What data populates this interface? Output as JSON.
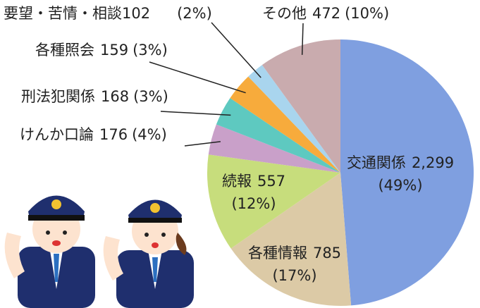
{
  "chart_data": {
    "type": "pie",
    "categories": [
      "交通関係",
      "各種情報",
      "続報",
      "けんか口論",
      "刑法犯関係",
      "各種照会",
      "要望・苦情・相談",
      "その他"
    ],
    "values": [
      2299,
      785,
      557,
      176,
      168,
      159,
      102,
      472
    ],
    "value_labels": [
      "2,299",
      "785",
      "557",
      "176",
      "168",
      "159",
      "102",
      "472"
    ],
    "percent_labels": [
      "(49%)",
      "(17%)",
      "(12%)",
      "(4%)",
      "(3%)",
      "(3%)",
      "(2%)",
      "(10%)"
    ],
    "colors": [
      "#7f9fe0",
      "#dccaa6",
      "#c7dd7c",
      "#c9a0c9",
      "#5ec9c0",
      "#f7ab3c",
      "#a9d5ee",
      "#c9abae"
    ]
  }
}
